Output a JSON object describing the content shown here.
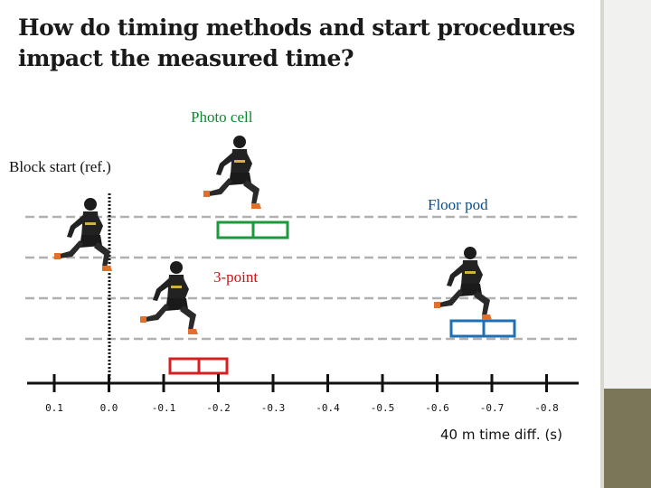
{
  "title": "How do timing methods and start procedures impact the measured time?",
  "labels": {
    "photo_cell": "Photo cell",
    "block_start": "Block start (ref.)",
    "floor_pod": "Floor pod",
    "three_point": "3-point"
  },
  "axis": {
    "title": "40 m time diff. (s)",
    "ticks": [
      "0.1",
      "0.0",
      "-0.1",
      "-0.2",
      "-0.3",
      "-0.4",
      "-0.5",
      "-0.6",
      "-0.7",
      "-0.8"
    ]
  },
  "colors": {
    "photo_cell": "#1a9a3a",
    "floor_pod": "#1f6fb2",
    "three_point": "#d42020",
    "reference": "#111111",
    "dashed": "#b0b0b0",
    "athlete": "#1c1c1c"
  },
  "icons": [
    "sprinter-figure"
  ]
}
